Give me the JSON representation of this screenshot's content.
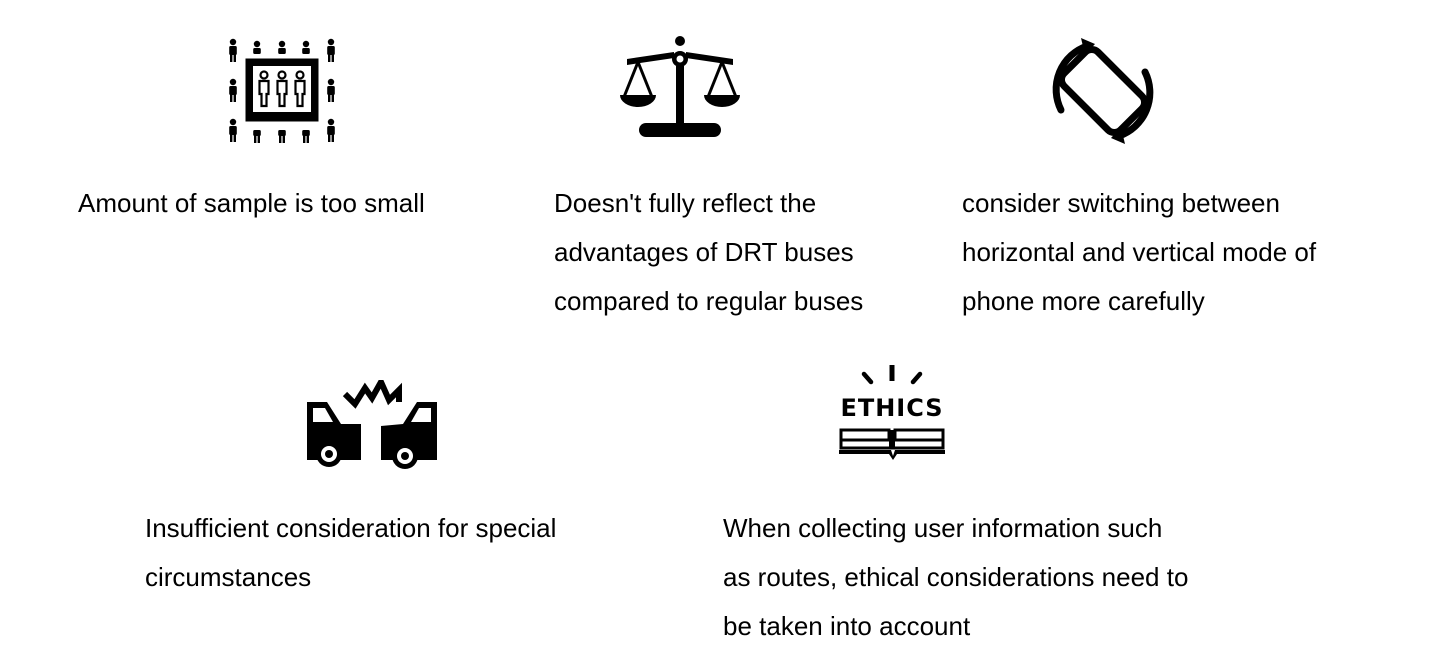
{
  "items": [
    {
      "icon": "crowd-sample-icon",
      "lines": [
        "Amount of sample is too small"
      ]
    },
    {
      "icon": "balance-scale-icon",
      "lines": [
        "Doesn't fully reflect the",
        "advantages of DRT buses",
        "compared to regular buses"
      ]
    },
    {
      "icon": "screen-rotation-icon",
      "lines": [
        "consider switching between",
        "horizontal and vertical mode of",
        "phone more carefully"
      ]
    },
    {
      "icon": "car-crash-icon",
      "lines": [
        "Insufficient consideration for special",
        "circumstances"
      ]
    },
    {
      "icon": "ethics-book-icon",
      "ethics_label": "ETHICS",
      "lines": [
        "When collecting user information such",
        "as routes, ethical considerations need to",
        "be taken into account"
      ]
    }
  ],
  "colors": {
    "foreground": "#000000",
    "background": "#ffffff"
  }
}
